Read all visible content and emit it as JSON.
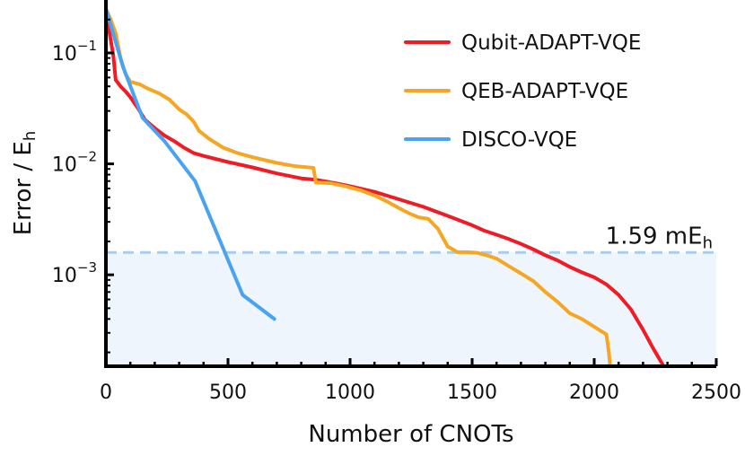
{
  "chart_data": {
    "type": "line",
    "xlabel": "Number of CNOTs",
    "ylabel_main": "Error / E",
    "ylabel_sub": "h",
    "xscale": "linear",
    "yscale": "log",
    "xlim": [
      0,
      2500
    ],
    "ylim": [
      0.00015,
      0.3
    ],
    "x_ticks": [
      0,
      500,
      1000,
      1500,
      2000,
      2500
    ],
    "x_tick_labels": [
      "0",
      "500",
      "1000",
      "1500",
      "2000",
      "2500"
    ],
    "y_ticks": [
      {
        "value": 0.1,
        "base": "10",
        "exp": "−1"
      },
      {
        "value": 0.01,
        "base": "10",
        "exp": "−2"
      },
      {
        "value": 0.001,
        "base": "10",
        "exp": "−3"
      }
    ],
    "threshold": {
      "value": 0.00159,
      "label_main": "1.59 mE",
      "label_sub": "h",
      "color": "#a9cdf2",
      "fill": "#eef5fd"
    },
    "legend_position": "top-right",
    "series": [
      {
        "name": "Qubit-ADAPT-VQE",
        "color": "#ee1c25",
        "x": [
          0,
          15,
          30,
          40,
          60,
          80,
          100,
          130,
          160,
          200,
          240,
          280,
          320,
          360,
          400,
          500,
          600,
          700,
          800,
          860,
          940,
          1000,
          1100,
          1200,
          1300,
          1400,
          1500,
          1550,
          1600,
          1650,
          1700,
          1750,
          1800,
          1850,
          1900,
          1950,
          2000,
          2050,
          2100,
          2150,
          2200,
          2240,
          2270,
          2285
        ],
        "y": [
          0.22,
          0.15,
          0.095,
          0.057,
          0.05,
          0.045,
          0.04,
          0.032,
          0.025,
          0.021,
          0.018,
          0.016,
          0.014,
          0.0125,
          0.0118,
          0.0104,
          0.0093,
          0.0082,
          0.0074,
          0.0072,
          0.0067,
          0.0063,
          0.0056,
          0.0048,
          0.0041,
          0.0034,
          0.0028,
          0.0025,
          0.0023,
          0.0021,
          0.0019,
          0.0017,
          0.0015,
          0.00135,
          0.00118,
          0.00105,
          0.00095,
          0.00082,
          0.00066,
          0.00049,
          0.00032,
          0.00022,
          0.00017,
          0.00015
        ]
      },
      {
        "name": "QEB-ADAPT-VQE",
        "color": "#f5a623",
        "x": [
          0,
          20,
          40,
          60,
          80,
          100,
          140,
          170,
          220,
          260,
          300,
          330,
          360,
          380,
          420,
          480,
          540,
          600,
          700,
          780,
          850,
          860,
          920,
          980,
          1040,
          1100,
          1150,
          1200,
          1240,
          1280,
          1320,
          1360,
          1400,
          1440,
          1480,
          1520,
          1560,
          1600,
          1650,
          1700,
          1750,
          1800,
          1850,
          1900,
          1950,
          2000,
          2050,
          2060,
          2065
        ],
        "y": [
          0.25,
          0.2,
          0.15,
          0.09,
          0.065,
          0.055,
          0.052,
          0.048,
          0.043,
          0.038,
          0.031,
          0.028,
          0.024,
          0.02,
          0.017,
          0.014,
          0.0125,
          0.0115,
          0.0102,
          0.0095,
          0.0092,
          0.0068,
          0.0067,
          0.0063,
          0.0058,
          0.0052,
          0.0046,
          0.004,
          0.0036,
          0.0033,
          0.0032,
          0.0026,
          0.0018,
          0.0016,
          0.0016,
          0.00158,
          0.0015,
          0.0014,
          0.0012,
          0.00103,
          0.00088,
          0.0007,
          0.00057,
          0.00045,
          0.0004,
          0.00034,
          0.00029,
          0.0002,
          0.00015
        ]
      },
      {
        "name": "DISCO-VQE",
        "color": "#4aa3f0",
        "x": [
          0,
          70,
          150,
          240,
          365,
          560,
          690
        ],
        "y": [
          0.25,
          0.075,
          0.026,
          0.016,
          0.007,
          0.00066,
          0.0004
        ]
      }
    ]
  }
}
